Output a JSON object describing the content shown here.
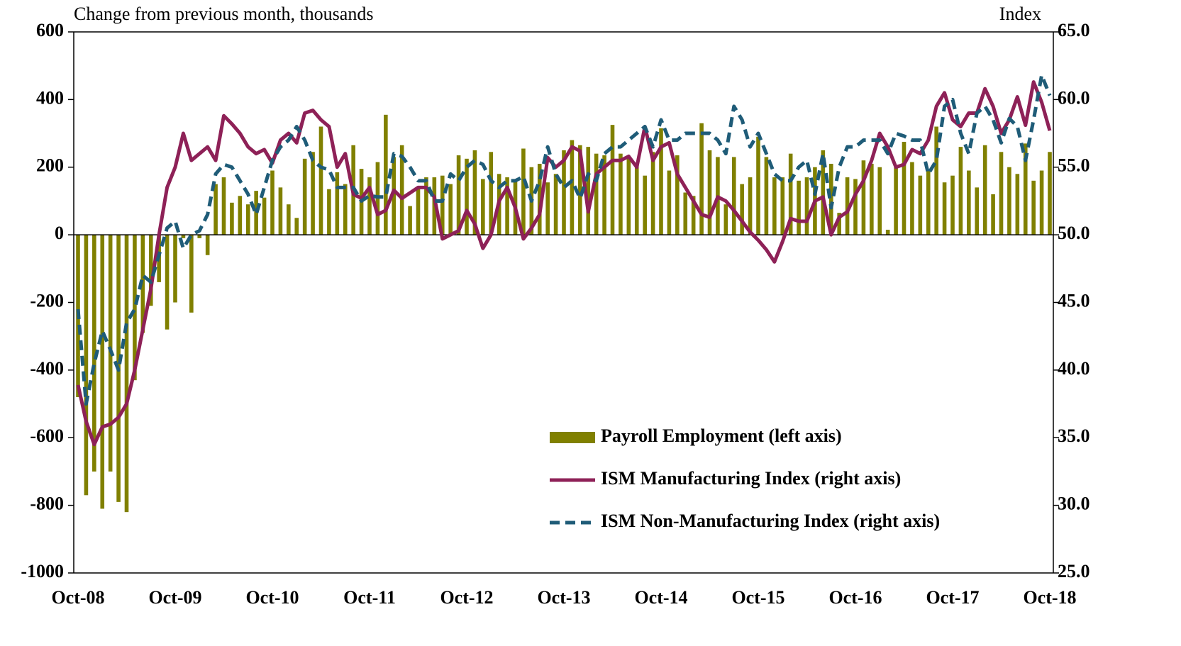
{
  "chart_data": {
    "type": "bar-line",
    "ylabel": "Change from previous month, thousands",
    "y2label": "Index",
    "categories": [
      "Oct-08",
      null,
      null,
      null,
      null,
      null,
      null,
      null,
      null,
      null,
      null,
      null,
      "Oct-09",
      null,
      null,
      null,
      null,
      null,
      null,
      null,
      null,
      null,
      null,
      null,
      "Oct-10",
      null,
      null,
      null,
      null,
      null,
      null,
      null,
      null,
      null,
      null,
      null,
      "Oct-11",
      null,
      null,
      null,
      null,
      null,
      null,
      null,
      null,
      null,
      null,
      null,
      "Oct-12",
      null,
      null,
      null,
      null,
      null,
      null,
      null,
      null,
      null,
      null,
      null,
      "Oct-13",
      null,
      null,
      null,
      null,
      null,
      null,
      null,
      null,
      null,
      null,
      null,
      "Oct-14",
      null,
      null,
      null,
      null,
      null,
      null,
      null,
      null,
      null,
      null,
      null,
      "Oct-15",
      null,
      null,
      null,
      null,
      null,
      null,
      null,
      null,
      null,
      null,
      null,
      "Oct-16",
      null,
      null,
      null,
      null,
      null,
      null,
      null,
      null,
      null,
      null,
      null,
      "Oct-17",
      null,
      null,
      null,
      null,
      null,
      null,
      null,
      null,
      null,
      null,
      null,
      "Oct-18"
    ],
    "series": [
      {
        "name": "Payroll Employment (left axis)",
        "type": "bar",
        "axis": "y",
        "color": "#808000",
        "values": [
          -480,
          -770,
          -700,
          -810,
          -700,
          -790,
          -820,
          -430,
          -290,
          -210,
          -140,
          -280,
          -200,
          -10,
          -230,
          -10,
          -60,
          150,
          170,
          95,
          115,
          90,
          130,
          110,
          190,
          140,
          90,
          50,
          225,
          245,
          320,
          135,
          185,
          150,
          265,
          195,
          170,
          215,
          355,
          230,
          265,
          85,
          140,
          170,
          170,
          175,
          150,
          235,
          225,
          250,
          165,
          245,
          180,
          170,
          165,
          255,
          200,
          210,
          155,
          180,
          250,
          280,
          265,
          260,
          240,
          235,
          325,
          240,
          230,
          205,
          175,
          245,
          315,
          190,
          235,
          125,
          115,
          330,
          250,
          230,
          90,
          230,
          150,
          170,
          290,
          230,
          170,
          170,
          240,
          160,
          170,
          200,
          250,
          210,
          65,
          170,
          165,
          220,
          210,
          200,
          15,
          200,
          275,
          215,
          175,
          190,
          320,
          155,
          175,
          260,
          190,
          140,
          265,
          120,
          245,
          200,
          180,
          270,
          160,
          190,
          245
        ]
      },
      {
        "name": "ISM Manufacturing Index (right axis)",
        "type": "line",
        "axis": "y2",
        "color": "#8e2157",
        "dashed": false,
        "values": [
          38.9,
          36.2,
          34.5,
          35.8,
          36.0,
          36.5,
          37.5,
          40.0,
          43.0,
          46.0,
          50.0,
          53.5,
          55.0,
          57.5,
          55.5,
          56.0,
          56.5,
          55.5,
          58.8,
          58.2,
          57.5,
          56.5,
          56.0,
          56.3,
          55.3,
          57.0,
          57.5,
          56.8,
          59.0,
          59.2,
          58.5,
          58.0,
          55.0,
          56.0,
          53.0,
          52.7,
          53.5,
          51.5,
          51.8,
          53.3,
          52.7,
          53.1,
          53.5,
          53.5,
          52.8,
          49.7,
          50.0,
          50.3,
          51.8,
          50.8,
          49.0,
          50.0,
          52.5,
          53.5,
          52.0,
          49.7,
          50.5,
          51.5,
          55.7,
          55.0,
          55.5,
          56.5,
          56.2,
          51.7,
          54.5,
          55.0,
          55.5,
          55.5,
          55.8,
          55.0,
          58.0,
          55.5,
          56.5,
          56.8,
          54.5,
          53.5,
          52.5,
          51.5,
          51.3,
          52.8,
          52.5,
          51.8,
          51.0,
          50.2,
          49.6,
          48.9,
          48.0,
          49.5,
          51.2,
          51.0,
          51.0,
          52.5,
          52.8,
          50.0,
          51.3,
          51.7,
          53.0,
          54.0,
          55.5,
          57.5,
          56.5,
          55.0,
          55.2,
          56.3,
          56.0,
          57.0,
          59.5,
          60.5,
          58.5,
          58.0,
          59.0,
          59.0,
          60.8,
          59.5,
          57.5,
          58.5,
          60.2,
          58.1,
          61.3,
          59.8,
          57.7
        ]
      },
      {
        "name": "ISM Non-Manufacturing Index (right axis)",
        "type": "line",
        "axis": "y2",
        "color": "#1f5c78",
        "dashed": true,
        "values": [
          44.5,
          37.5,
          40.5,
          42.9,
          41.5,
          40.0,
          43.5,
          44.5,
          47.0,
          46.5,
          48.5,
          50.5,
          51.0,
          49.0,
          50.0,
          50.3,
          51.5,
          54.5,
          55.2,
          55.0,
          54.0,
          53.0,
          51.5,
          53.5,
          55.5,
          56.5,
          57.0,
          58.0,
          57.0,
          55.5,
          55.0,
          54.8,
          53.5,
          53.5,
          53.5,
          52.5,
          52.9,
          52.8,
          52.8,
          56.0,
          55.8,
          55.0,
          54.0,
          54.0,
          52.5,
          52.5,
          54.5,
          54.0,
          55.0,
          55.5,
          55.2,
          54.0,
          53.5,
          54.0,
          54.0,
          54.3,
          52.5,
          54.0,
          56.5,
          54.5,
          53.5,
          54.0,
          52.7,
          54.5,
          54.0,
          56.0,
          56.5,
          56.5,
          57.0,
          57.5,
          58.0,
          56.5,
          58.5,
          57.0,
          57.0,
          57.5,
          57.5,
          57.5,
          57.5,
          57.0,
          56.0,
          59.5,
          58.5,
          56.5,
          57.5,
          56.0,
          54.5,
          54.0,
          54.0,
          55.0,
          55.5,
          53.0,
          56.0,
          52.0,
          55.0,
          56.5,
          56.5,
          57.0,
          57.0,
          57.0,
          56.0,
          57.5,
          57.3,
          57.0,
          57.0,
          54.5,
          55.5,
          59.5,
          60.0,
          57.5,
          56.0,
          59.0,
          59.5,
          58.5,
          56.8,
          58.6,
          58.0,
          55.5,
          58.5,
          61.8,
          60.3
        ]
      }
    ],
    "ylim": [
      -1000,
      600
    ],
    "yticks": [
      -1000,
      -800,
      -600,
      -400,
      -200,
      0,
      200,
      400,
      600
    ],
    "y2lim": [
      25,
      65
    ],
    "y2ticks": [
      {
        "value": 25,
        "label": "25.0"
      },
      {
        "value": 30,
        "label": "30.0"
      },
      {
        "value": 35,
        "label": "35.0"
      },
      {
        "value": 40,
        "label": "40.0"
      },
      {
        "value": 45,
        "label": "45.0"
      },
      {
        "value": 50,
        "label": "50.0"
      },
      {
        "value": 55,
        "label": "55.0"
      },
      {
        "value": 60,
        "label": "60.0"
      },
      {
        "value": 65,
        "label": "65.0"
      }
    ],
    "grid": false,
    "legend": "lower right"
  }
}
